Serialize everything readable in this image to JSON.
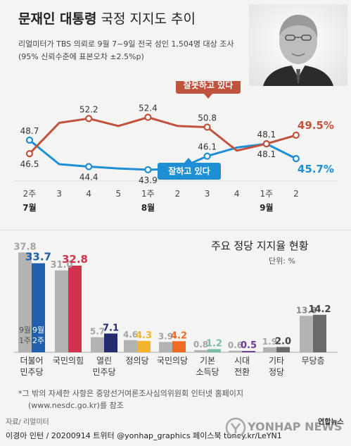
{
  "header": {
    "title_bold": "문재인 대통령",
    "title_rest": "국정 지지도 추이",
    "subtitle_line1": "리얼미터가 TBS 의뢰로 9월 7~9일 전국 성인 1,504명 대상 조사",
    "subtitle_line2": "(95% 신뢰수준에 표본오차 ±2.5%p)"
  },
  "colors": {
    "approve": "#1e8fd5",
    "disapprove": "#c0533d",
    "minjoo": "#1f5fae",
    "ppp": "#d1334e",
    "open_democratic": "#232c6e",
    "justice": "#f3b42f",
    "peoples": "#f16a22",
    "basic_income": "#79bfa5",
    "era_transition": "#6b3a96",
    "grey_prev": "#b3b3b3",
    "grey_curr": "#6a6a6a"
  },
  "chart_data": [
    {
      "type": "line",
      "x": [
        "2주",
        "3",
        "4",
        "5",
        "1주",
        "2",
        "3",
        "4",
        "1주",
        "2"
      ],
      "month_labels": [
        {
          "label": "7월",
          "at": "2주"
        },
        {
          "label": "8월",
          "at": "1주"
        },
        {
          "label": "9월",
          "at": "1주"
        }
      ],
      "series": [
        {
          "name": "잘하고 있다",
          "values": [
            48.7,
            44.8,
            44.4,
            44.1,
            43.9,
            44.0,
            46.1,
            47.5,
            48.1,
            45.7
          ]
        },
        {
          "name": "잘못하고 있다",
          "values": [
            46.5,
            51.5,
            52.2,
            51.0,
            52.4,
            51.0,
            50.8,
            47.0,
            48.1,
            49.5
          ]
        }
      ],
      "labeled_points": {
        "approve": [
          {
            "i": 0,
            "text": "48.7"
          },
          {
            "i": 2,
            "text": "44.4"
          },
          {
            "i": 4,
            "text": "43.9"
          },
          {
            "i": 6,
            "text": "46.1"
          },
          {
            "i": 8,
            "text": "48.1"
          },
          {
            "i": 9,
            "text": "45.7%"
          }
        ],
        "disapprove": [
          {
            "i": 0,
            "text": "46.5"
          },
          {
            "i": 2,
            "text": "52.2"
          },
          {
            "i": 4,
            "text": "52.4"
          },
          {
            "i": 6,
            "text": "50.8"
          },
          {
            "i": 8,
            "text": "48.1"
          },
          {
            "i": 9,
            "text": "49.5%"
          }
        ]
      },
      "title": "",
      "ylim": [
        40,
        56
      ]
    },
    {
      "type": "bar",
      "title": "주요 정당 지지율 현황",
      "unit": "단위: %",
      "categories": [
        "더불어 민주당",
        "국민의힘",
        "열린 민주당",
        "정의당",
        "국민의당",
        "기본 소득당",
        "시대 전환",
        "기타 정당",
        "무당층"
      ],
      "series": [
        {
          "name": "9월 1주",
          "values": [
            37.8,
            31.0,
            5.7,
            4.6,
            3.9,
            0.8,
            0.6,
            1.9,
            13.8
          ]
        },
        {
          "name": "9월 2주",
          "values": [
            33.7,
            32.8,
            7.1,
            4.3,
            4.2,
            1.2,
            0.5,
            2.0,
            14.2
          ]
        }
      ],
      "ylim": [
        0,
        40
      ]
    }
  ],
  "footer": {
    "note_line1": "*그 밖의 자세한 사항은 중앙선거여론조사심의위원회 인터넷 홈페이지",
    "note_line2": "(www.nesdc.go.kr)를 참조",
    "source": "자료/ 리얼미터",
    "credit": "이경아 인턴 / 20200914  트위터 @yonhap_graphics  페이스북 tuney.kr/LeYN1",
    "brand": "연합뉴스",
    "watermark": "YONHAP NEWS"
  }
}
